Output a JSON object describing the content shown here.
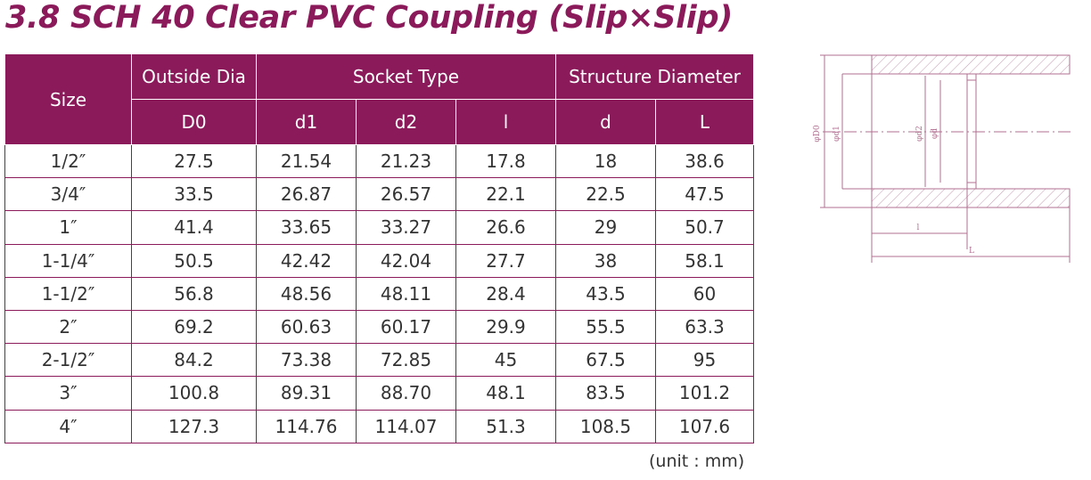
{
  "title": "3.8 SCH 40 Clear PVC Coupling (Slip×Slip)",
  "table": {
    "header_top": [
      "Size",
      "Outside Dia",
      "Socket Type",
      "Structure Diameter"
    ],
    "header_sub": [
      "D0",
      "d1",
      "d2",
      "l",
      "d",
      "L"
    ],
    "rows": [
      [
        "1/2″",
        "27.5",
        "21.54",
        "21.23",
        "17.8",
        "18",
        "38.6"
      ],
      [
        "3/4″",
        "33.5",
        "26.87",
        "26.57",
        "22.1",
        "22.5",
        "47.5"
      ],
      [
        "1″",
        "41.4",
        "33.65",
        "33.27",
        "26.6",
        "29",
        "50.7"
      ],
      [
        "1-1/4″",
        "50.5",
        "42.42",
        "42.04",
        "27.7",
        "38",
        "58.1"
      ],
      [
        "1-1/2″",
        "56.8",
        "48.56",
        "48.11",
        "28.4",
        "43.5",
        "60"
      ],
      [
        "2″",
        "69.2",
        "60.63",
        "60.17",
        "29.9",
        "55.5",
        "63.3"
      ],
      [
        "2-1/2″",
        "84.2",
        "73.38",
        "72.85",
        "45",
        "67.5",
        "95"
      ],
      [
        "3″",
        "100.8",
        "89.31",
        "88.70",
        "48.1",
        "83.5",
        "101.2"
      ],
      [
        "4″",
        "127.3",
        "114.76",
        "114.07",
        "51.3",
        "108.5",
        "107.6"
      ]
    ]
  },
  "unit": "(unit : mm)",
  "diagram": {
    "labels": [
      "φD0",
      "φd1",
      "φd2",
      "φd",
      "l",
      "L"
    ]
  }
}
